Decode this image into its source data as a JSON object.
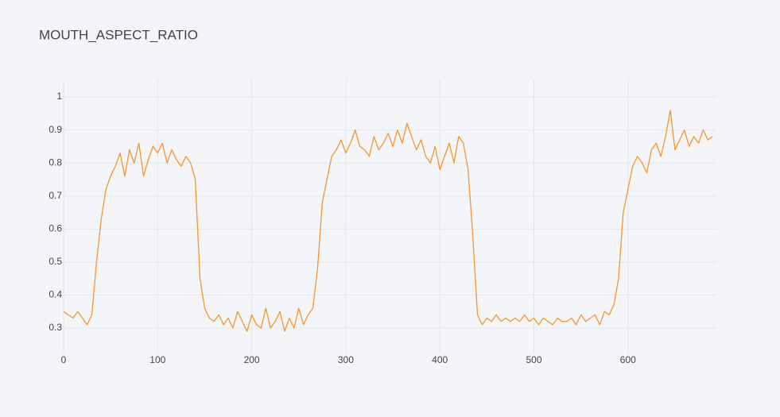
{
  "chart_data": {
    "type": "line",
    "title": "MOUTH_ASPECT_RATIO",
    "x": [
      0,
      5,
      10,
      15,
      20,
      25,
      30,
      35,
      40,
      45,
      50,
      55,
      60,
      65,
      70,
      75,
      80,
      85,
      90,
      95,
      100,
      105,
      110,
      115,
      120,
      125,
      130,
      135,
      140,
      145,
      150,
      155,
      160,
      165,
      170,
      175,
      180,
      185,
      190,
      195,
      200,
      205,
      210,
      215,
      220,
      225,
      230,
      235,
      240,
      245,
      250,
      255,
      260,
      265,
      270,
      275,
      280,
      285,
      290,
      295,
      300,
      305,
      310,
      315,
      320,
      325,
      330,
      335,
      340,
      345,
      350,
      355,
      360,
      365,
      370,
      375,
      380,
      385,
      390,
      395,
      400,
      405,
      410,
      415,
      420,
      425,
      430,
      435,
      440,
      445,
      450,
      455,
      460,
      465,
      470,
      475,
      480,
      485,
      490,
      495,
      500,
      505,
      510,
      515,
      520,
      525,
      530,
      535,
      540,
      545,
      550,
      555,
      560,
      565,
      570,
      575,
      580,
      585,
      590,
      595,
      600,
      605,
      610,
      615,
      620,
      625,
      630,
      635,
      640,
      645,
      650,
      655,
      660,
      665,
      670,
      675,
      680,
      685,
      690
    ],
    "values": [
      0.35,
      0.34,
      0.33,
      0.35,
      0.33,
      0.31,
      0.34,
      0.5,
      0.63,
      0.72,
      0.76,
      0.79,
      0.83,
      0.76,
      0.84,
      0.8,
      0.86,
      0.76,
      0.81,
      0.85,
      0.83,
      0.86,
      0.8,
      0.84,
      0.81,
      0.79,
      0.82,
      0.8,
      0.75,
      0.45,
      0.36,
      0.33,
      0.32,
      0.34,
      0.31,
      0.33,
      0.3,
      0.35,
      0.32,
      0.29,
      0.34,
      0.31,
      0.3,
      0.36,
      0.3,
      0.32,
      0.35,
      0.29,
      0.33,
      0.3,
      0.36,
      0.31,
      0.34,
      0.36,
      0.48,
      0.68,
      0.75,
      0.82,
      0.84,
      0.87,
      0.83,
      0.86,
      0.9,
      0.85,
      0.84,
      0.82,
      0.88,
      0.84,
      0.86,
      0.89,
      0.85,
      0.9,
      0.86,
      0.92,
      0.88,
      0.84,
      0.87,
      0.82,
      0.8,
      0.85,
      0.78,
      0.82,
      0.86,
      0.8,
      0.88,
      0.86,
      0.78,
      0.58,
      0.34,
      0.31,
      0.33,
      0.32,
      0.34,
      0.32,
      0.33,
      0.32,
      0.33,
      0.32,
      0.34,
      0.32,
      0.33,
      0.31,
      0.33,
      0.32,
      0.31,
      0.33,
      0.32,
      0.32,
      0.33,
      0.31,
      0.34,
      0.32,
      0.33,
      0.34,
      0.31,
      0.35,
      0.34,
      0.37,
      0.45,
      0.65,
      0.72,
      0.79,
      0.82,
      0.8,
      0.77,
      0.84,
      0.86,
      0.82,
      0.88,
      0.96,
      0.84,
      0.87,
      0.9,
      0.85,
      0.88,
      0.86,
      0.9,
      0.87,
      0.88
    ],
    "color": "#f5962f",
    "xlim": [
      0,
      694
    ],
    "ylim": [
      0.223,
      1.053
    ],
    "xticks": [
      0,
      100,
      200,
      300,
      400,
      500,
      600
    ],
    "yticks": [
      0.3,
      0.4,
      0.5,
      0.6,
      0.7,
      0.8,
      0.9,
      1
    ],
    "grid": true
  }
}
